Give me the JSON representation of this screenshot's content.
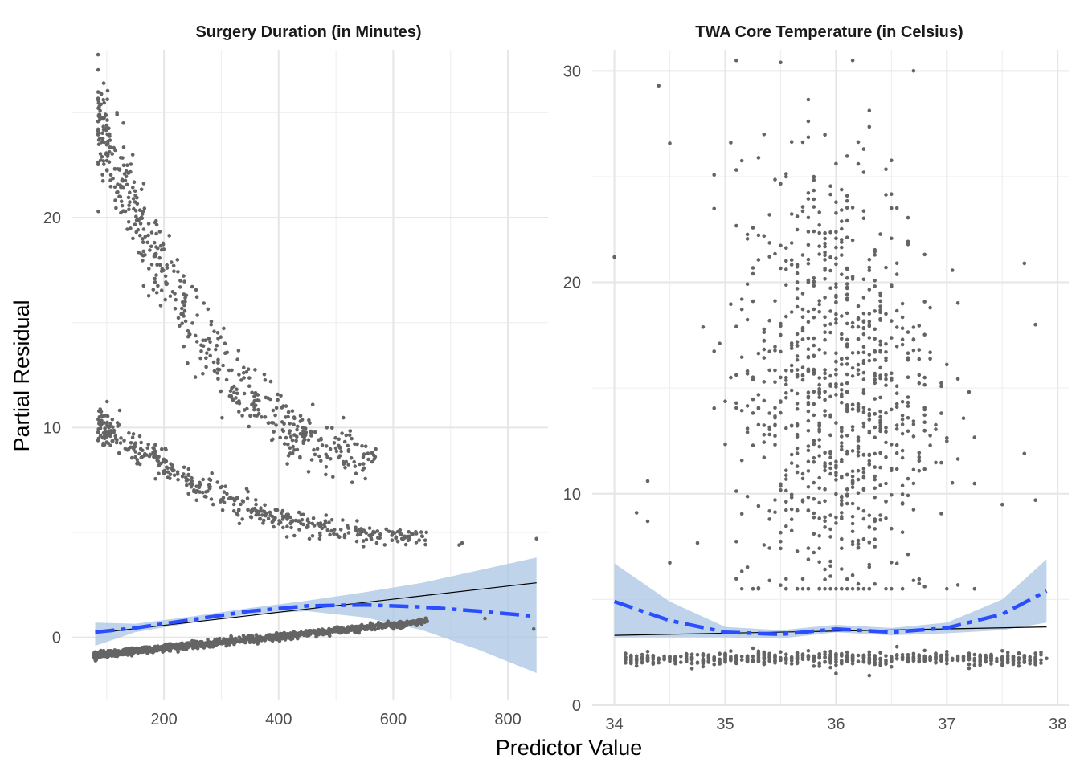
{
  "chart_data": {
    "type": "scatter",
    "xlabel": "Predictor Value",
    "ylabel": "Partial Residual",
    "colors": {
      "points": "#646464",
      "linear_fit": "#000000",
      "smooth": "#2a4dff",
      "ribbon": "#a9c4e3",
      "grid_major": "#e6e6e6",
      "grid_minor": "#f0f0f0"
    },
    "panels": [
      {
        "title": "Surgery Duration (in Minutes)",
        "xlim": [
          40,
          870
        ],
        "ylim": [
          -3,
          28
        ],
        "x_ticks": [
          200,
          400,
          600,
          800
        ],
        "y_ticks": [
          0,
          10,
          20
        ],
        "points": {
          "clusters": [
            {
              "label": "upper curve",
              "x_range": [
                85,
                570
              ],
              "y_start": 24.5,
              "y_end": 8.7,
              "shape": "decay",
              "spread": 1.2,
              "n": 520
            },
            {
              "label": "middle curve",
              "x_range": [
                85,
                660
              ],
              "y_start": 10.2,
              "y_end": 4.8,
              "shape": "decay",
              "spread": 0.45,
              "n": 420
            },
            {
              "label": "baseline band",
              "x_range": [
                78,
                660
              ],
              "y_start": -0.85,
              "y_end": 0.75,
              "shape": "linear",
              "spread": 0.08,
              "n": 1200
            }
          ],
          "extra": [
            [
              720,
              4.5
            ],
            [
              715,
              4.4
            ],
            [
              850,
              4.7
            ],
            [
              760,
              0.9
            ],
            [
              845,
              0.4
            ]
          ]
        },
        "linear_fit": {
          "x": [
            80,
            850
          ],
          "y": [
            0.2,
            2.6
          ]
        },
        "smooth": {
          "x": [
            80,
            150,
            250,
            350,
            450,
            550,
            650,
            750,
            850
          ],
          "y": [
            0.25,
            0.45,
            0.85,
            1.25,
            1.5,
            1.55,
            1.45,
            1.25,
            1.0
          ],
          "lower": [
            -0.4,
            0.25,
            0.7,
            1.1,
            1.25,
            0.95,
            0.35,
            -0.6,
            -1.7
          ],
          "upper": [
            0.7,
            0.65,
            1.0,
            1.4,
            1.75,
            2.15,
            2.6,
            3.2,
            3.8
          ]
        }
      },
      {
        "title": "TWA Core Temperature (in Celsius)",
        "xlim": [
          33.8,
          38.1
        ],
        "ylim": [
          0,
          31
        ],
        "x_ticks": [
          34,
          35,
          36,
          37,
          38
        ],
        "y_ticks": [
          0,
          10,
          20,
          30
        ],
        "points": {
          "clusters": [
            {
              "label": "main cloud",
              "x_range": [
                34.0,
                37.9
              ],
              "center_x": 36.0,
              "sd_x": 0.45,
              "center_y": 15,
              "sd_y": 5.5,
              "y_range": [
                5.5,
                30.5
              ],
              "n": 900
            },
            {
              "label": "baseline band",
              "x_range": [
                34.1,
                37.9
              ],
              "y_center": 2.2,
              "spread": 0.15,
              "n": 600
            }
          ],
          "extra": [
            [
              34.0,
              21.2
            ],
            [
              34.4,
              29.3
            ],
            [
              34.2,
              9.1
            ],
            [
              34.3,
              8.7
            ],
            [
              34.3,
              10.6
            ],
            [
              35.5,
              30.4
            ],
            [
              37.8,
              18.0
            ],
            [
              37.8,
              9.7
            ],
            [
              37.7,
              20.9
            ],
            [
              37.7,
              11.9
            ],
            [
              36.0,
              1.5
            ],
            [
              36.3,
              1.4
            ]
          ]
        },
        "linear_fit": {
          "x": [
            34.0,
            37.9
          ],
          "y": [
            3.3,
            3.7
          ]
        },
        "smooth": {
          "x": [
            34.0,
            34.5,
            35.0,
            35.5,
            36.0,
            36.5,
            37.0,
            37.5,
            37.9
          ],
          "y": [
            4.9,
            4.0,
            3.45,
            3.35,
            3.6,
            3.45,
            3.65,
            4.3,
            5.4
          ],
          "lower": [
            3.2,
            3.2,
            3.2,
            3.15,
            3.45,
            3.3,
            3.4,
            3.55,
            3.9
          ],
          "upper": [
            6.7,
            4.9,
            3.7,
            3.55,
            3.8,
            3.65,
            3.9,
            5.0,
            6.9
          ]
        }
      }
    ]
  }
}
